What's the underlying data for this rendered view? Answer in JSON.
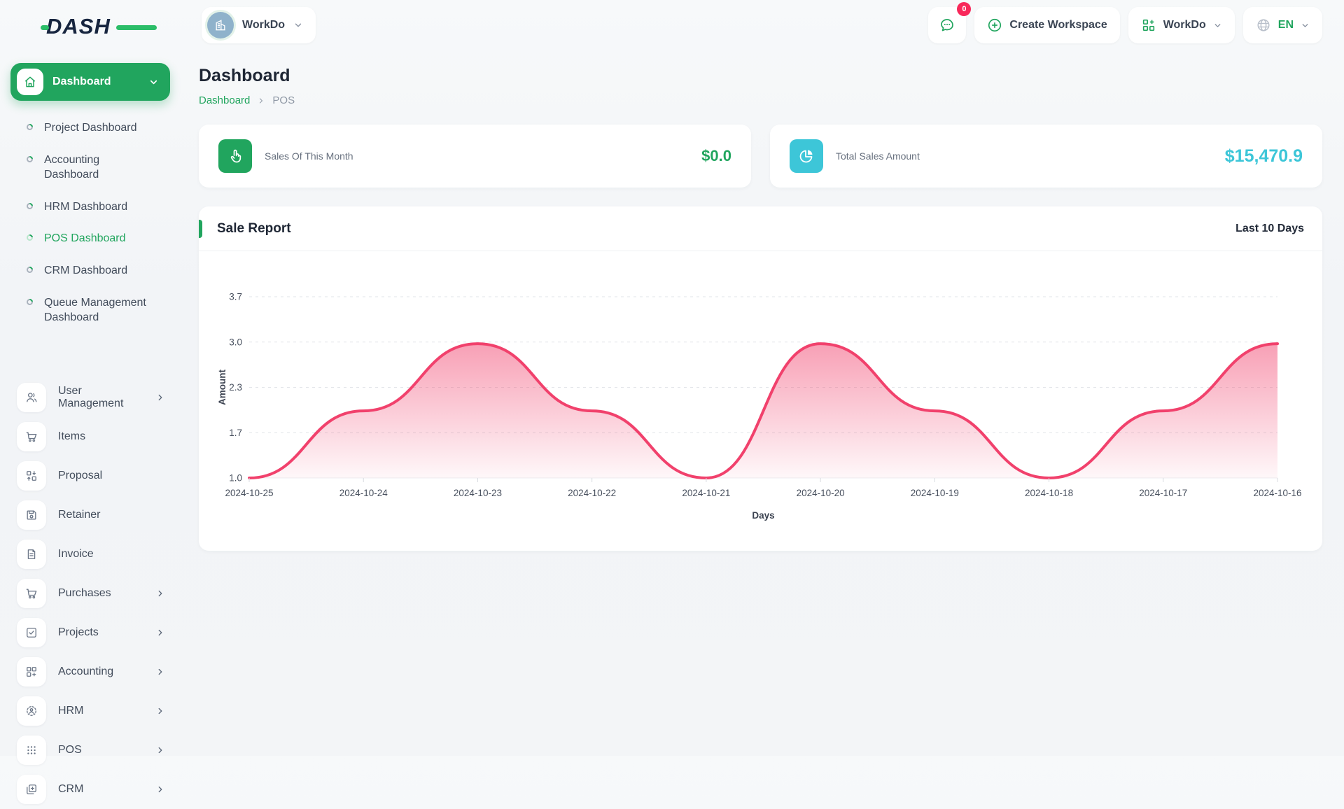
{
  "brand": {
    "logo_text": "DASH"
  },
  "header": {
    "workspace_selector": {
      "label": "WorkDo"
    },
    "messages_badge": "0",
    "create_workspace_label": "Create Workspace",
    "workspace_dropdown_label": "WorkDo",
    "language": "EN"
  },
  "sidebar": {
    "active_group": {
      "label": "Dashboard"
    },
    "dashboard_children": [
      {
        "label": "Project Dashboard"
      },
      {
        "label": "Accounting Dashboard"
      },
      {
        "label": "HRM Dashboard"
      },
      {
        "label": "POS Dashboard"
      },
      {
        "label": "CRM Dashboard"
      },
      {
        "label": "Queue Management Dashboard"
      }
    ],
    "items": [
      {
        "label": "User Management"
      },
      {
        "label": "Items"
      },
      {
        "label": "Proposal"
      },
      {
        "label": "Retainer"
      },
      {
        "label": "Invoice"
      },
      {
        "label": "Purchases"
      },
      {
        "label": "Projects"
      },
      {
        "label": "Accounting"
      },
      {
        "label": "HRM"
      },
      {
        "label": "POS"
      },
      {
        "label": "CRM"
      }
    ]
  },
  "page": {
    "title": "Dashboard",
    "breadcrumb": {
      "parent": "Dashboard",
      "current": "POS"
    }
  },
  "stats": [
    {
      "label": "Sales Of This Month",
      "value": "$0.0",
      "color": "#21a55e"
    },
    {
      "label": "Total Sales Amount",
      "value": "$15,470.9",
      "color": "#3dc6d8"
    }
  ],
  "chart_card": {
    "title": "Sale Report",
    "range_label": "Last 10 Days"
  },
  "chart_data": {
    "type": "area",
    "title": "Sale Report",
    "x": [
      "2024-10-25",
      "2024-10-24",
      "2024-10-23",
      "2024-10-22",
      "2024-10-21",
      "2024-10-20",
      "2024-10-19",
      "2024-10-18",
      "2024-10-17",
      "2024-10-16"
    ],
    "values": [
      1,
      2,
      3,
      2,
      1,
      3,
      2,
      1,
      2,
      3
    ],
    "xlabel": "Days",
    "ylabel": "Amount",
    "yticks": [
      1.0,
      1.7,
      2.3,
      3.0,
      3.7
    ],
    "ylim": [
      1.0,
      3.7
    ],
    "line_color": "#f1416c",
    "grid": true,
    "legend": false
  }
}
